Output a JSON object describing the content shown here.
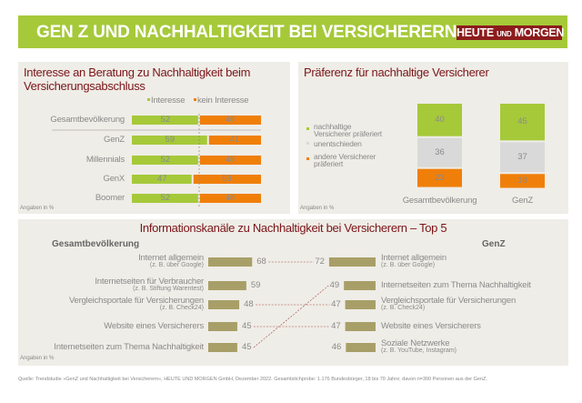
{
  "header": {
    "title": "GEN Z UND NACHHALTIGKEIT  BEI VERSICHERERN",
    "logo_main1": "HEUTE",
    "logo_small": "UND",
    "logo_main2": "MORGEN"
  },
  "colors": {
    "green": "#a6c93a",
    "orange": "#f07f0a",
    "grey": "#d9d9d9",
    "olive": "#a89f68",
    "title": "#7a1418",
    "logo": "#8c1c1c"
  },
  "note": "Angaben in %",
  "source": "Quelle: Trendstudie »GenZ und Nachhaltigkeit bei Versicherern«, HEUTE UND MORGEN GmbH, Dezember 2022. Gesamtstichprobe: 1.176 Bundesbürger, 18 bis 70 Jahre; davon n=300 Personen aus der GenZ.",
  "chart_data": [
    {
      "type": "bar",
      "stacked": true,
      "orientation": "horizontal",
      "title": "Interesse an Beratung zu Nachhaltigkeit beim Versicherungsabschluss",
      "categories": [
        "Gesamtbevölkerung",
        "GenZ",
        "Millennials",
        "GenX",
        "Boomer"
      ],
      "series": [
        {
          "name": "Interesse",
          "values": [
            52,
            59,
            52,
            47,
            52
          ]
        },
        {
          "name": "kein Interesse",
          "values": [
            48,
            41,
            48,
            53,
            48
          ]
        }
      ],
      "legend": "top-right",
      "unit": "Angaben in %"
    },
    {
      "type": "bar",
      "stacked": true,
      "orientation": "vertical",
      "title": "Präferenz für nachhaltige Versicherer",
      "categories": [
        "Gesamtbevölkerung",
        "GenZ"
      ],
      "series": [
        {
          "name": "nachhaltige Versicherer präferiert",
          "values": [
            40,
            45
          ]
        },
        {
          "name": "unentschieden",
          "values": [
            36,
            37
          ]
        },
        {
          "name": "andere Versicherer präferiert",
          "values": [
            23,
            18
          ]
        }
      ],
      "legend": "left",
      "unit": "Angaben in %"
    },
    {
      "type": "bar",
      "orientation": "horizontal",
      "title": "Informationskanäle zu Nachhaltigkeit bei Versicherern – Top 5",
      "groups": [
        {
          "name": "Gesamtbevölkerung",
          "items": [
            {
              "label": "Internet allgemein",
              "sub": "(z. B. über Google)",
              "value": 68
            },
            {
              "label": "Internetseiten für Verbraucher",
              "sub": "(z. B. Stiftung Warentest)",
              "value": 59
            },
            {
              "label": "Vergleichsportale für Versicherungen",
              "sub": "(z. B. Check24)",
              "value": 48
            },
            {
              "label": "Website eines Versicherers",
              "sub": "",
              "value": 45
            },
            {
              "label": "Internetseiten  zum Thema Nachhaltigkeit",
              "sub": "",
              "value": 45
            }
          ]
        },
        {
          "name": "GenZ",
          "items": [
            {
              "label": "Internet allgemein",
              "sub": "(z. B. über Google)",
              "value": 72
            },
            {
              "label": "Internetseiten  zum Thema Nachhaltigkeit",
              "sub": "",
              "value": 49
            },
            {
              "label": "Vergleichsportale für Versicherungen",
              "sub": "(z. B. Check24)",
              "value": 47
            },
            {
              "label": "Website eines Versicherers",
              "sub": "",
              "value": 47
            },
            {
              "label": "Soziale Netzwerke",
              "sub": "(z. B. YouTube, Instagram)",
              "value": 46
            }
          ]
        }
      ],
      "links": [
        [
          0,
          0
        ],
        [
          2,
          2
        ],
        [
          3,
          3
        ],
        [
          4,
          1
        ]
      ],
      "unit": "Angaben in %"
    }
  ]
}
